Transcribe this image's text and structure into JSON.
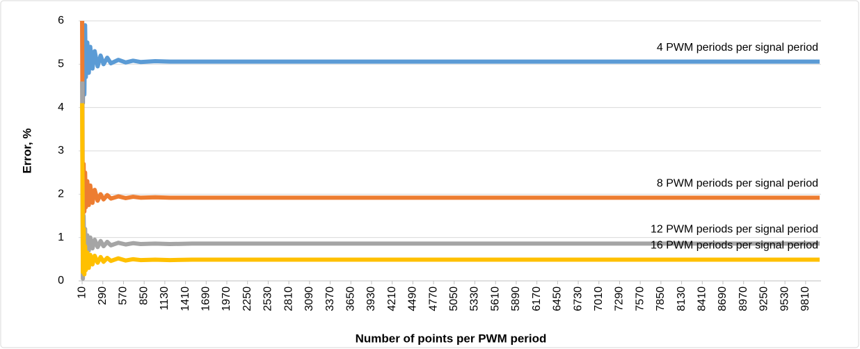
{
  "chart_data": {
    "type": "line",
    "xlabel": "Number of points per PWM period",
    "ylabel": "Error, %",
    "x": [
      10,
      20,
      30,
      40,
      50,
      60,
      80,
      100,
      120,
      150,
      180,
      220,
      260,
      300,
      350,
      400,
      500,
      600,
      700,
      800,
      1000,
      1200,
      1500,
      2000,
      3000,
      4000,
      5000,
      6000,
      7000,
      8000,
      9000,
      10000
    ],
    "series": [
      {
        "name": "4 PWM periods per signal period",
        "color": "#5b9bd5",
        "values": [
          6,
          4.1,
          5.9,
          4.3,
          5.9,
          4.7,
          5.5,
          4.8,
          5.4,
          4.9,
          5.3,
          4.95,
          5.2,
          5.0,
          5.15,
          5.02,
          5.1,
          5.04,
          5.08,
          5.05,
          5.07,
          5.06,
          5.06,
          5.06,
          5.06,
          5.06,
          5.06,
          5.06,
          5.06,
          5.06,
          5.06,
          5.06
        ]
      },
      {
        "name": "8 PWM periods per signal period",
        "color": "#ed7d31",
        "values": [
          6,
          1.0,
          2.7,
          1.6,
          2.5,
          1.7,
          2.3,
          1.75,
          2.2,
          1.8,
          2.1,
          1.85,
          2.0,
          1.88,
          1.98,
          1.9,
          1.95,
          1.91,
          1.94,
          1.92,
          1.93,
          1.92,
          1.92,
          1.92,
          1.92,
          1.92,
          1.92,
          1.92,
          1.92,
          1.92,
          1.92,
          1.92
        ]
      },
      {
        "name": "12 PWM periods per signal period",
        "color": "#a5a5a5",
        "values": [
          4.6,
          0.05,
          1.5,
          0.5,
          1.2,
          0.6,
          1.05,
          0.7,
          1.0,
          0.75,
          0.95,
          0.78,
          0.92,
          0.8,
          0.9,
          0.82,
          0.88,
          0.84,
          0.87,
          0.85,
          0.86,
          0.85,
          0.86,
          0.86,
          0.86,
          0.86,
          0.86,
          0.86,
          0.86,
          0.86,
          0.86,
          0.86
        ]
      },
      {
        "name": "16 PWM periods per signal period",
        "color": "#ffc000",
        "values": [
          4.1,
          0.2,
          1.2,
          0.15,
          0.8,
          0.25,
          0.65,
          0.3,
          0.6,
          0.38,
          0.58,
          0.42,
          0.55,
          0.44,
          0.53,
          0.46,
          0.52,
          0.47,
          0.5,
          0.48,
          0.49,
          0.48,
          0.49,
          0.49,
          0.49,
          0.49,
          0.49,
          0.49,
          0.49,
          0.49,
          0.49,
          0.49
        ]
      }
    ],
    "xlim": [
      0,
      10000
    ],
    "xticks": [
      10,
      290,
      570,
      850,
      1130,
      1410,
      1690,
      1970,
      2250,
      2530,
      2810,
      3090,
      3370,
      3650,
      3930,
      4210,
      4490,
      4770,
      5050,
      5330,
      5610,
      5890,
      6170,
      6450,
      6730,
      7010,
      7290,
      7570,
      7850,
      8130,
      8410,
      8690,
      8970,
      9250,
      9530,
      9810
    ],
    "ylim": [
      0,
      6
    ],
    "yticks": [
      0,
      1,
      2,
      3,
      4,
      5,
      6
    ],
    "grid": true
  }
}
